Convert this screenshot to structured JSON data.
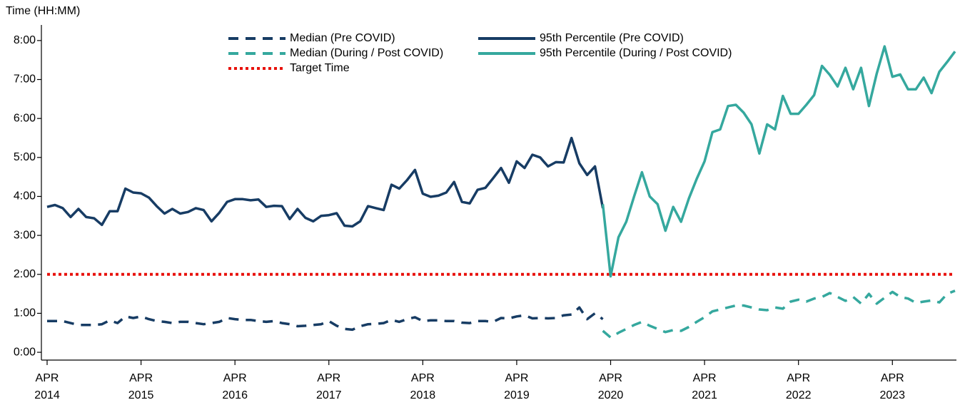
{
  "chart_data": {
    "type": "line",
    "y_label": "Time (HH:MM)",
    "categories": [
      "APR 2014",
      null,
      null,
      null,
      null,
      null,
      null,
      null,
      null,
      null,
      null,
      null,
      "APR 2015",
      null,
      null,
      null,
      null,
      null,
      null,
      null,
      null,
      null,
      null,
      null,
      "APR 2016",
      null,
      null,
      null,
      null,
      null,
      null,
      null,
      null,
      null,
      null,
      null,
      "APR 2017",
      null,
      null,
      null,
      null,
      null,
      null,
      null,
      null,
      null,
      null,
      null,
      "APR 2018",
      null,
      null,
      null,
      null,
      null,
      null,
      null,
      null,
      null,
      null,
      null,
      "APR 2019",
      null,
      null,
      null,
      null,
      null,
      null,
      null,
      null,
      null,
      null,
      null,
      "APR 2020",
      null,
      null,
      null,
      null,
      null,
      null,
      null,
      null,
      null,
      null,
      null,
      "APR 2021",
      null,
      null,
      null,
      null,
      null,
      null,
      null,
      null,
      null,
      null,
      null,
      "APR 2022",
      null,
      null,
      null,
      null,
      null,
      null,
      null,
      null,
      null,
      null,
      null,
      "APR 2023",
      null,
      null,
      null,
      null,
      null,
      null,
      null,
      null
    ],
    "series": [
      {
        "name": "Median (Pre COVID)",
        "color": "#173c64",
        "style": "dash",
        "values": [
          0.8,
          0.8,
          0.8,
          0.75,
          0.7,
          0.7,
          0.7,
          0.72,
          0.82,
          0.75,
          0.92,
          0.88,
          0.92,
          0.85,
          0.8,
          0.78,
          0.75,
          0.78,
          0.78,
          0.75,
          0.72,
          0.75,
          0.78,
          0.88,
          0.85,
          0.83,
          0.83,
          0.8,
          0.78,
          0.8,
          0.75,
          0.72,
          0.67,
          0.68,
          0.7,
          0.72,
          0.8,
          0.68,
          0.6,
          0.58,
          0.67,
          0.72,
          0.73,
          0.75,
          0.83,
          0.78,
          0.85,
          0.9,
          0.8,
          0.82,
          0.82,
          0.8,
          0.8,
          0.76,
          0.75,
          0.8,
          0.8,
          0.78,
          0.88,
          0.87,
          0.92,
          0.95,
          0.87,
          0.88,
          0.87,
          0.88,
          0.95,
          0.97,
          1.15,
          0.85,
          1.0,
          0.85,
          null,
          null,
          null,
          null,
          null,
          null,
          null,
          null,
          null,
          null,
          null,
          null,
          null,
          null,
          null,
          null,
          null,
          null,
          null,
          null,
          null,
          null,
          null,
          null,
          null,
          null,
          null,
          null,
          null,
          null,
          null,
          null,
          null,
          null,
          null,
          null,
          null,
          null,
          null,
          null,
          null,
          null,
          null,
          null,
          null
        ]
      },
      {
        "name": "Median (During / Post COVID)",
        "color": "#35a89e",
        "style": "dash",
        "values": [
          null,
          null,
          null,
          null,
          null,
          null,
          null,
          null,
          null,
          null,
          null,
          null,
          null,
          null,
          null,
          null,
          null,
          null,
          null,
          null,
          null,
          null,
          null,
          null,
          null,
          null,
          null,
          null,
          null,
          null,
          null,
          null,
          null,
          null,
          null,
          null,
          null,
          null,
          null,
          null,
          null,
          null,
          null,
          null,
          null,
          null,
          null,
          null,
          null,
          null,
          null,
          null,
          null,
          null,
          null,
          null,
          null,
          null,
          null,
          null,
          null,
          null,
          null,
          null,
          null,
          null,
          null,
          null,
          null,
          null,
          null,
          0.55,
          0.38,
          0.5,
          0.6,
          0.7,
          0.78,
          0.68,
          0.6,
          0.52,
          0.57,
          0.55,
          0.65,
          0.78,
          0.9,
          1.05,
          1.1,
          1.15,
          1.2,
          1.2,
          1.15,
          1.1,
          1.08,
          1.15,
          1.12,
          1.3,
          1.35,
          1.3,
          1.38,
          1.42,
          1.52,
          1.42,
          1.32,
          1.42,
          1.25,
          1.5,
          1.25,
          1.4,
          1.55,
          1.42,
          1.38,
          1.27,
          1.3,
          1.33,
          1.28,
          1.5,
          1.58
        ]
      },
      {
        "name": "95th Percentile (Pre COVID)",
        "color": "#173c64",
        "style": "solid",
        "values": [
          3.73,
          3.78,
          3.7,
          3.47,
          3.68,
          3.47,
          3.44,
          3.27,
          3.62,
          3.62,
          4.2,
          4.1,
          4.08,
          3.97,
          3.75,
          3.56,
          3.68,
          3.56,
          3.6,
          3.7,
          3.65,
          3.36,
          3.58,
          3.86,
          3.93,
          3.93,
          3.9,
          3.92,
          3.73,
          3.76,
          3.75,
          3.42,
          3.68,
          3.45,
          3.36,
          3.5,
          3.52,
          3.57,
          3.25,
          3.23,
          3.36,
          3.75,
          3.7,
          3.65,
          4.3,
          4.2,
          4.42,
          4.68,
          4.07,
          3.99,
          4.02,
          4.1,
          4.37,
          3.86,
          3.82,
          4.17,
          4.22,
          4.47,
          4.73,
          4.35,
          4.9,
          4.73,
          5.07,
          5.0,
          4.77,
          4.88,
          4.87,
          5.5,
          4.85,
          4.55,
          4.77,
          3.7,
          null,
          null,
          null,
          null,
          null,
          null,
          null,
          null,
          null,
          null,
          null,
          null,
          null,
          null,
          null,
          null,
          null,
          null,
          null,
          null,
          null,
          null,
          null,
          null,
          null,
          null,
          null,
          null,
          null,
          null,
          null,
          null,
          null,
          null,
          null,
          null,
          null,
          null,
          null,
          null,
          null,
          null,
          null,
          null,
          null
        ]
      },
      {
        "name": "95th Percentile (During / Post COVID)",
        "color": "#35a89e",
        "style": "solid",
        "values": [
          null,
          null,
          null,
          null,
          null,
          null,
          null,
          null,
          null,
          null,
          null,
          null,
          null,
          null,
          null,
          null,
          null,
          null,
          null,
          null,
          null,
          null,
          null,
          null,
          null,
          null,
          null,
          null,
          null,
          null,
          null,
          null,
          null,
          null,
          null,
          null,
          null,
          null,
          null,
          null,
          null,
          null,
          null,
          null,
          null,
          null,
          null,
          null,
          null,
          null,
          null,
          null,
          null,
          null,
          null,
          null,
          null,
          null,
          null,
          null,
          null,
          null,
          null,
          null,
          null,
          null,
          null,
          null,
          null,
          null,
          null,
          3.8,
          1.95,
          2.95,
          3.35,
          4.0,
          4.62,
          4.0,
          3.8,
          3.12,
          3.73,
          3.35,
          3.95,
          4.45,
          4.9,
          5.65,
          5.72,
          6.32,
          6.35,
          6.15,
          5.85,
          5.1,
          5.85,
          5.72,
          6.58,
          6.12,
          6.12,
          6.35,
          6.6,
          7.35,
          7.12,
          6.82,
          7.3,
          6.75,
          7.3,
          6.32,
          7.15,
          7.85,
          7.07,
          7.13,
          6.75,
          6.75,
          7.05,
          6.65,
          7.2,
          7.45,
          7.72
        ]
      }
    ],
    "target": {
      "name": "Target Time",
      "value": 2,
      "color": "#e8120c"
    },
    "ylim": [
      -0.2,
      8.4
    ],
    "yticks": [
      {
        "value": 0,
        "label": "0:00"
      },
      {
        "value": 1,
        "label": "1:00"
      },
      {
        "value": 2,
        "label": "2:00"
      },
      {
        "value": 3,
        "label": "3:00"
      },
      {
        "value": 4,
        "label": "4:00"
      },
      {
        "value": 5,
        "label": "5:00"
      },
      {
        "value": 6,
        "label": "6:00"
      },
      {
        "value": 7,
        "label": "7:00"
      },
      {
        "value": 8,
        "label": "8:00"
      }
    ],
    "legend": "top"
  }
}
